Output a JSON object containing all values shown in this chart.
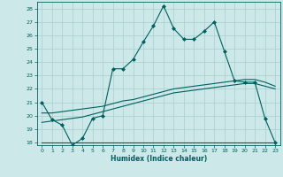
{
  "xlabel": "Humidex (Indice chaleur)",
  "background_color": "#cce8e8",
  "grid_color": "#aacece",
  "line_color": "#006060",
  "xlim": [
    -0.5,
    23.5
  ],
  "ylim": [
    17.8,
    28.5
  ],
  "yticks": [
    18,
    19,
    20,
    21,
    22,
    23,
    24,
    25,
    26,
    27,
    28
  ],
  "xticks": [
    0,
    1,
    2,
    3,
    4,
    5,
    6,
    7,
    8,
    9,
    10,
    11,
    12,
    13,
    14,
    15,
    16,
    17,
    18,
    19,
    20,
    21,
    22,
    23
  ],
  "series1_x": [
    0,
    1,
    2,
    3,
    4,
    5,
    6,
    7,
    8,
    9,
    10,
    11,
    12,
    13,
    14,
    15,
    16,
    17,
    18,
    19,
    20,
    21,
    22,
    23
  ],
  "series1_y": [
    21.0,
    19.7,
    19.3,
    17.8,
    18.3,
    19.8,
    20.0,
    23.5,
    23.5,
    24.2,
    25.5,
    26.7,
    28.2,
    26.5,
    25.7,
    25.7,
    26.3,
    27.0,
    24.8,
    22.6,
    22.5,
    22.5,
    19.8,
    18.0
  ],
  "series2_x": [
    0,
    10,
    18,
    23
  ],
  "series2_y": [
    18.0,
    18.0,
    18.0,
    18.0
  ],
  "series3_x": [
    0,
    1,
    2,
    3,
    4,
    5,
    6,
    7,
    8,
    9,
    10,
    11,
    12,
    13,
    14,
    15,
    16,
    17,
    18,
    19,
    20,
    21,
    22,
    23
  ],
  "series3_y": [
    19.5,
    19.6,
    19.7,
    19.8,
    19.9,
    20.1,
    20.3,
    20.5,
    20.7,
    20.9,
    21.1,
    21.3,
    21.5,
    21.7,
    21.8,
    21.9,
    22.0,
    22.1,
    22.2,
    22.3,
    22.4,
    22.4,
    22.2,
    22.0
  ],
  "series4_x": [
    0,
    1,
    2,
    3,
    4,
    5,
    6,
    7,
    8,
    9,
    10,
    11,
    12,
    13,
    14,
    15,
    16,
    17,
    18,
    19,
    20,
    21,
    22,
    23
  ],
  "series4_y": [
    20.2,
    20.2,
    20.3,
    20.4,
    20.5,
    20.6,
    20.7,
    20.9,
    21.1,
    21.2,
    21.4,
    21.6,
    21.8,
    22.0,
    22.1,
    22.2,
    22.3,
    22.4,
    22.5,
    22.6,
    22.7,
    22.7,
    22.5,
    22.2
  ]
}
